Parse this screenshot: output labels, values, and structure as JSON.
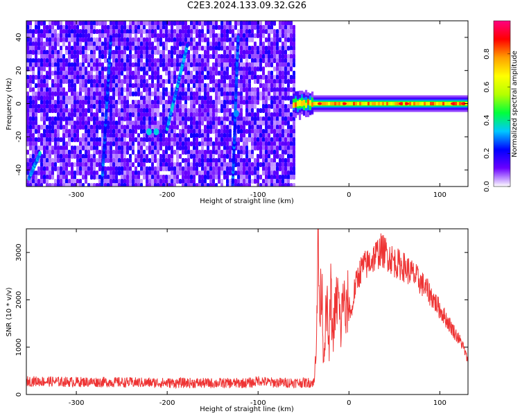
{
  "figure": {
    "title": "C2E3.2024.133.09.32.G26"
  },
  "chart_data": [
    {
      "type": "heatmap",
      "title": "",
      "xlabel": "Height of straight line (km)",
      "ylabel": "Frequency (Hz)",
      "xlim": [
        -355,
        131
      ],
      "ylim": [
        -50,
        50
      ],
      "x_ticks": [
        -300,
        -200,
        -100,
        0,
        100
      ],
      "y_ticks": [
        -40,
        -20,
        0,
        20,
        40
      ],
      "colorbar": {
        "label": "Normalized spectral amplitude",
        "range": [
          0,
          1
        ],
        "ticks": [
          0.0,
          0.2,
          0.4,
          0.6,
          0.8
        ],
        "colormap": [
          "#ffffff",
          "#6a00ff",
          "#0000ff",
          "#00c8ff",
          "#00ff3c",
          "#b4ff00",
          "#ffff00",
          "#ffa000",
          "#ff0000",
          "#ff0080"
        ]
      },
      "noise_region": {
        "x_range": [
          -355,
          -62
        ],
        "level": 0.15
      },
      "signal_band": {
        "x_range": [
          -62,
          131
        ],
        "center_frequency": 0,
        "peak_amplitude": 0.9
      },
      "streaks": [
        {
          "x_start": -352,
          "f_start": -45,
          "x_end": -340,
          "f_end": -30,
          "amplitude": 0.3
        },
        {
          "x_start": -272,
          "f_start": -50,
          "x_end": -262,
          "f_end": 40,
          "amplitude": 0.25
        },
        {
          "x_start": -200,
          "f_start": -15,
          "x_end": -178,
          "f_end": 35,
          "amplitude": 0.3
        },
        {
          "x_start": -128,
          "f_start": -50,
          "x_end": -122,
          "f_end": 40,
          "amplitude": 0.25
        }
      ],
      "hotspots": [
        {
          "x": -220,
          "f": -17,
          "amplitude": 0.35
        },
        {
          "x": -212,
          "f": -17,
          "amplitude": 0.35
        },
        {
          "x": -124,
          "f": -6,
          "amplitude": 0.3
        }
      ]
    },
    {
      "type": "line",
      "title": "",
      "xlabel": "Height of straight line (km)",
      "ylabel": "SNR (10 * v/v)",
      "xlim": [
        -355,
        131
      ],
      "ylim": [
        0,
        3500
      ],
      "x_ticks": [
        -300,
        -200,
        -100,
        0,
        100
      ],
      "y_ticks": [
        0,
        1000,
        2000,
        3000
      ],
      "grid": false,
      "series": [
        {
          "color": "#ee3333",
          "points": [
            [
              -355,
              280
            ],
            [
              -340,
              280
            ],
            [
              -320,
              270
            ],
            [
              -300,
              265
            ],
            [
              -280,
              265
            ],
            [
              -260,
              260
            ],
            [
              -240,
              255
            ],
            [
              -220,
              250
            ],
            [
              -200,
              245
            ],
            [
              -180,
              245
            ],
            [
              -160,
              240
            ],
            [
              -140,
              240
            ],
            [
              -120,
              240
            ],
            [
              -105,
              250
            ],
            [
              -100,
              300
            ],
            [
              -90,
              260
            ],
            [
              -80,
              250
            ],
            [
              -60,
              250
            ],
            [
              -45,
              250
            ],
            [
              -38,
              260
            ],
            [
              -36,
              1200
            ],
            [
              -34,
              3300
            ],
            [
              -32,
              1500
            ],
            [
              -30,
              2600
            ],
            [
              -28,
              700
            ],
            [
              -26,
              1500
            ],
            [
              -24,
              1800
            ],
            [
              -22,
              900
            ],
            [
              -20,
              2200
            ],
            [
              -18,
              1200
            ],
            [
              -15,
              1800
            ],
            [
              -12,
              2100
            ],
            [
              -9,
              1300
            ],
            [
              -6,
              2300
            ],
            [
              -4,
              1500
            ],
            [
              -1,
              2000
            ],
            [
              3,
              1700
            ],
            [
              6,
              2200
            ],
            [
              10,
              2500
            ],
            [
              15,
              2700
            ],
            [
              20,
              2750
            ],
            [
              25,
              2850
            ],
            [
              30,
              2950
            ],
            [
              35,
              3050
            ],
            [
              40,
              3000
            ],
            [
              45,
              2900
            ],
            [
              50,
              2800
            ],
            [
              55,
              2750
            ],
            [
              60,
              2700
            ],
            [
              70,
              2550
            ],
            [
              80,
              2350
            ],
            [
              90,
              2100
            ],
            [
              100,
              1800
            ],
            [
              110,
              1500
            ],
            [
              120,
              1200
            ],
            [
              125,
              1050
            ],
            [
              131,
              700
            ]
          ]
        }
      ]
    }
  ]
}
